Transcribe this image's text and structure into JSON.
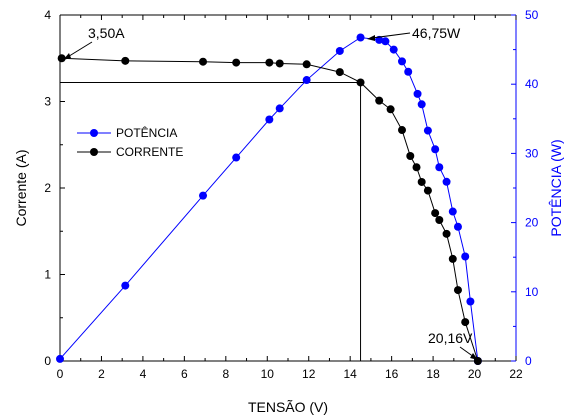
{
  "chart_data": {
    "type": "line",
    "xlabel": "TENSÃO (V)",
    "ylabel_left": "Corrente (A)",
    "ylabel_right": "POTÊNCIA (W)",
    "xlim": [
      0,
      22
    ],
    "ylim_left": [
      0,
      4
    ],
    "ylim_right": [
      0,
      50
    ],
    "xticks": [
      "0",
      "2",
      "4",
      "6",
      "8",
      "10",
      "12",
      "14",
      "16",
      "18",
      "20",
      "22"
    ],
    "yticks_left": [
      "0",
      "1",
      "2",
      "3",
      "4"
    ],
    "yticks_right": [
      "0",
      "10",
      "20",
      "30",
      "40",
      "50"
    ],
    "series": [
      {
        "name": "POTÊNCIA",
        "axis": "right",
        "color": "#0000ff",
        "x": [
          0,
          3.15,
          6.9,
          8.5,
          10.1,
          10.6,
          11.9,
          13.5,
          14.5,
          15.4,
          15.7,
          16.1,
          16.5,
          16.8,
          17.25,
          17.45,
          17.75,
          18.1,
          18.3,
          18.65,
          18.95,
          19.2,
          19.55,
          19.8,
          20.16
        ],
        "y": [
          0.3,
          10.9,
          23.9,
          29.4,
          34.9,
          36.5,
          40.6,
          44.8,
          46.75,
          46.4,
          46.2,
          45.0,
          43.3,
          41.8,
          38.6,
          37.1,
          33.3,
          30.6,
          28.0,
          25.9,
          21.6,
          19.4,
          15.1,
          8.6,
          0.0
        ]
      },
      {
        "name": "CORRENTE",
        "axis": "left",
        "color": "#000000",
        "x": [
          0.08,
          3.15,
          6.9,
          8.5,
          10.1,
          10.6,
          11.9,
          13.5,
          14.5,
          15.4,
          15.95,
          16.5,
          16.9,
          17.2,
          17.45,
          17.75,
          18.1,
          18.3,
          18.65,
          18.95,
          19.2,
          19.55,
          20.16
        ],
        "y": [
          3.5,
          3.47,
          3.46,
          3.45,
          3.45,
          3.44,
          3.43,
          3.34,
          3.22,
          3.01,
          2.91,
          2.67,
          2.37,
          2.24,
          2.07,
          1.97,
          1.71,
          1.63,
          1.47,
          1.18,
          0.82,
          0.45,
          0.0
        ]
      }
    ],
    "annotations": [
      {
        "text": "3,50A"
      },
      {
        "text": "46,75W"
      },
      {
        "text": "20,16V"
      }
    ],
    "legend": {
      "placement": "center-left",
      "entries": [
        "POTÊNCIA",
        "CORRENTE"
      ]
    },
    "reference_lines": {
      "mpp_voltage": 14.5,
      "mpp_current": 3.22
    },
    "grid": false
  }
}
